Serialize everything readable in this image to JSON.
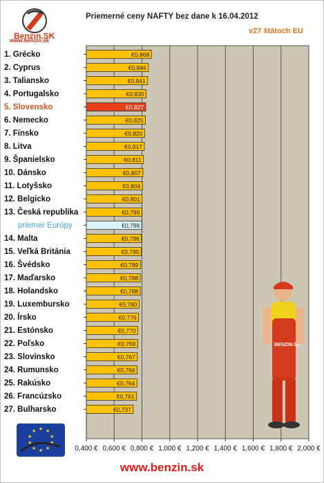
{
  "header": {
    "logo_text": "Benzin.SK",
    "logo_url": "www.benzin.sk",
    "title": "Priemerné ceny NAFTY bez dane k 16.04.2012",
    "subtitle": "v27 štátoch EU"
  },
  "footer": {
    "url": "www.benzin.sk"
  },
  "mascot": {
    "badge_text": "BENZIN.SK"
  },
  "colors": {
    "bar": "#ffc000",
    "highlight": "#e8401c",
    "average": "#d9f4f7",
    "plot_bg": "#cec6b5",
    "grid": "#555555"
  },
  "chart_data": {
    "type": "bar",
    "orientation": "horizontal",
    "title": "Priemerné ceny NAFTY bez dane k 16.04.2012",
    "subtitle": "v27 štátoch EU",
    "xlim": [
      0.4,
      2.0
    ],
    "xticks": [
      "0,400 €",
      "0,600 €",
      "0,800 €",
      "1,000 €",
      "1,200 €",
      "1,400 €",
      "1,600 €",
      "1,800 €",
      "2,000 €"
    ],
    "grid": true,
    "categories": [
      "1. Grécko",
      "2. Cyprus",
      "3. Taliansko",
      "4. Portugalsko",
      "5. Slovensko",
      "6. Nemecko",
      "7. Fínsko",
      "8. Litva",
      "9. Španielsko",
      "10. Dánsko",
      "11. Lotyšsko",
      "12. Belgicko",
      "13. Česká republika",
      "priemer Európy",
      "14. Malta",
      "15. Veľká Británia",
      "16. Švédsko",
      "17. Maďarsko",
      "18. Holandsko",
      "19. Luxembursko",
      "20. Írsko",
      "21. Estónsko",
      "22. Poľsko",
      "23. Slovinsko",
      "24. Rumunsko",
      "25. Rakúsko",
      "26. Francúzsko",
      "27. Bulharsko"
    ],
    "values": [
      0.868,
      0.846,
      0.841,
      0.83,
      0.827,
      0.825,
      0.82,
      0.817,
      0.811,
      0.807,
      0.804,
      0.801,
      0.799,
      0.798,
      0.796,
      0.795,
      0.789,
      0.788,
      0.788,
      0.78,
      0.776,
      0.77,
      0.769,
      0.767,
      0.766,
      0.764,
      0.761,
      0.737
    ],
    "value_labels": [
      "€0,868",
      "€0,846",
      "€0,841",
      "€0,830",
      "€0,827",
      "€0,825",
      "€0,820",
      "€0,817",
      "€0,811",
      "€0,807",
      "€0,804",
      "€0,801",
      "€0,799",
      "€0,798",
      "€0,796",
      "€0,795",
      "€0,789",
      "€0,788",
      "€0,788",
      "€0,780",
      "€0,776",
      "€0,770",
      "€0,769",
      "€0,767",
      "€0,766",
      "€0,764",
      "€0,761",
      "€0,737"
    ],
    "highlight_index": 4,
    "average_index": 13
  }
}
